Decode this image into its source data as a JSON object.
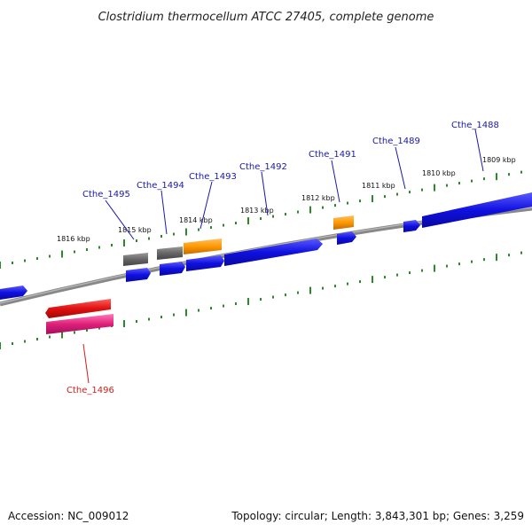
{
  "title": "Clostridium thermocellum ATCC 27405, complete genome",
  "footer": {
    "accession": "Accession: NC_009012",
    "summary": "Topology: circular; Length: 3,843,301 bp; Genes: 3,259"
  },
  "ruler_labels": [
    "1816 kbp",
    "1815 kbp",
    "1814 kbp",
    "1813 kbp",
    "1812 kbp",
    "1811 kbp",
    "1810 kbp",
    "1809 kbp"
  ],
  "gene_labels": [
    {
      "id": "Cthe_1488",
      "color": "#1a1aa8"
    },
    {
      "id": "Cthe_1489",
      "color": "#1a1aa8"
    },
    {
      "id": "Cthe_1491",
      "color": "#1a1aa8"
    },
    {
      "id": "Cthe_1492",
      "color": "#1a1aa8"
    },
    {
      "id": "Cthe_1493",
      "color": "#1a1aa8"
    },
    {
      "id": "Cthe_1494",
      "color": "#1a1aa8"
    },
    {
      "id": "Cthe_1495",
      "color": "#1a1aa8"
    },
    {
      "id": "Cthe_1496",
      "color": "#d02020"
    }
  ],
  "colors": {
    "backbone": "#888888",
    "ticks": "#2a8a2a",
    "cds_forward": "#1010e0",
    "cds_reverse": "#e01010",
    "rna": "#ff9900",
    "pseudo": "#666666",
    "misc": "#e0207a"
  }
}
